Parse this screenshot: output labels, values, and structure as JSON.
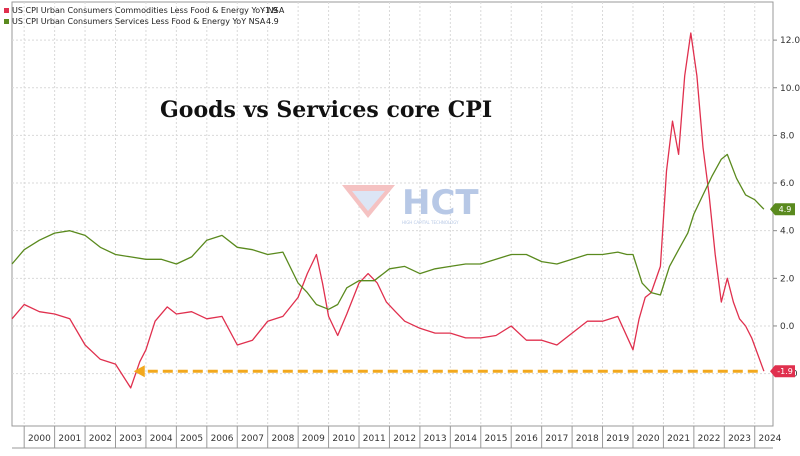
{
  "chart_data": {
    "type": "line",
    "title": "Goods vs Services core CPI",
    "ylim": [
      -4.2,
      13.6
    ],
    "xlim": [
      1999.6,
      2024.6
    ],
    "y_ticks": [
      -2.0,
      0.0,
      2.0,
      4.0,
      6.0,
      8.0,
      10.0,
      12.0
    ],
    "y_tick_labels": [
      "-2.0",
      "0.0",
      "2.0",
      "4.0",
      "6.0",
      "8.0",
      "10.0",
      "12.0"
    ],
    "x_tick_labels": [
      "2000",
      "2001",
      "2002",
      "2003",
      "2004",
      "2005",
      "2006",
      "2007",
      "2008",
      "2009",
      "2010",
      "2011",
      "2012",
      "2013",
      "2014",
      "2015",
      "2016",
      "2017",
      "2018",
      "2019",
      "2020",
      "2021",
      "2022",
      "2023",
      "2024"
    ],
    "grid": true,
    "legend_position": "top-left",
    "series": [
      {
        "name": "US CPI Urban Consumers Commodities Less Food & Energy YoY NSA",
        "legend_value": "-1.9",
        "color": "#e0304e",
        "x": [
          1999.6,
          2000.0,
          2000.5,
          2001.0,
          2001.5,
          2002.0,
          2002.5,
          2003.0,
          2003.5,
          2003.8,
          2004.0,
          2004.3,
          2004.7,
          2005.0,
          2005.5,
          2006.0,
          2006.5,
          2007.0,
          2007.5,
          2008.0,
          2008.5,
          2009.0,
          2009.3,
          2009.6,
          2009.8,
          2010.0,
          2010.3,
          2010.6,
          2011.0,
          2011.3,
          2011.6,
          2011.9,
          2012.2,
          2012.5,
          2013.0,
          2013.5,
          2014.0,
          2014.5,
          2015.0,
          2015.5,
          2016.0,
          2016.5,
          2017.0,
          2017.5,
          2018.0,
          2018.5,
          2019.0,
          2019.5,
          2020.0,
          2020.2,
          2020.4,
          2020.6,
          2020.9,
          2021.1,
          2021.3,
          2021.5,
          2021.7,
          2021.9,
          2022.1,
          2022.3,
          2022.5,
          2022.7,
          2022.9,
          2023.1,
          2023.3,
          2023.5,
          2023.7,
          2023.9,
          2024.1,
          2024.3
        ],
        "y": [
          0.3,
          0.9,
          0.6,
          0.5,
          0.3,
          -0.8,
          -1.4,
          -1.6,
          -2.6,
          -1.5,
          -1.0,
          0.2,
          0.8,
          0.5,
          0.6,
          0.3,
          0.4,
          -0.8,
          -0.6,
          0.2,
          0.4,
          1.2,
          2.2,
          3.0,
          1.8,
          0.4,
          -0.4,
          0.5,
          1.8,
          2.2,
          1.8,
          1.0,
          0.6,
          0.2,
          -0.1,
          -0.3,
          -0.3,
          -0.5,
          -0.5,
          -0.4,
          0.0,
          -0.6,
          -0.6,
          -0.8,
          -0.3,
          0.2,
          0.2,
          0.4,
          -1.0,
          0.3,
          1.2,
          1.4,
          2.5,
          6.5,
          8.6,
          7.2,
          10.5,
          12.3,
          10.5,
          7.5,
          5.5,
          3.0,
          1.0,
          2.0,
          1.0,
          0.3,
          0.0,
          -0.5,
          -1.2,
          -1.9
        ]
      },
      {
        "name": "US CPI Urban Consumers Services Less Food & Energy YoY NSA",
        "legend_value": "4.9",
        "color": "#5a8a1e",
        "x": [
          1999.6,
          2000.0,
          2000.5,
          2001.0,
          2001.5,
          2002.0,
          2002.5,
          2003.0,
          2003.5,
          2004.0,
          2004.5,
          2005.0,
          2005.5,
          2006.0,
          2006.5,
          2007.0,
          2007.5,
          2008.0,
          2008.5,
          2009.0,
          2009.3,
          2009.6,
          2010.0,
          2010.3,
          2010.6,
          2011.0,
          2011.5,
          2012.0,
          2012.5,
          2013.0,
          2013.5,
          2014.0,
          2014.5,
          2015.0,
          2015.5,
          2016.0,
          2016.5,
          2017.0,
          2017.5,
          2018.0,
          2018.5,
          2019.0,
          2019.5,
          2019.8,
          2020.0,
          2020.3,
          2020.6,
          2020.9,
          2021.2,
          2021.5,
          2021.8,
          2022.0,
          2022.3,
          2022.6,
          2022.9,
          2023.1,
          2023.4,
          2023.7,
          2024.0,
          2024.3
        ],
        "y": [
          2.6,
          3.2,
          3.6,
          3.9,
          4.0,
          3.8,
          3.3,
          3.0,
          2.9,
          2.8,
          2.8,
          2.6,
          2.9,
          3.6,
          3.8,
          3.3,
          3.2,
          3.0,
          3.1,
          1.8,
          1.4,
          0.9,
          0.7,
          0.9,
          1.6,
          1.9,
          1.9,
          2.4,
          2.5,
          2.2,
          2.4,
          2.5,
          2.6,
          2.6,
          2.8,
          3.0,
          3.0,
          2.7,
          2.6,
          2.8,
          3.0,
          3.0,
          3.1,
          3.0,
          3.0,
          1.8,
          1.4,
          1.3,
          2.5,
          3.2,
          3.9,
          4.7,
          5.5,
          6.3,
          7.0,
          7.2,
          6.2,
          5.5,
          5.3,
          4.9
        ]
      }
    ],
    "annotations": [
      {
        "type": "dashed-arrow",
        "color": "#f2a81d",
        "y": -1.9,
        "x_start": 2024.1,
        "x_end": 2003.6
      }
    ]
  },
  "watermark": {
    "text": "HCT",
    "subtext": "HIGH CAPITAL TECHNOLOGY"
  }
}
